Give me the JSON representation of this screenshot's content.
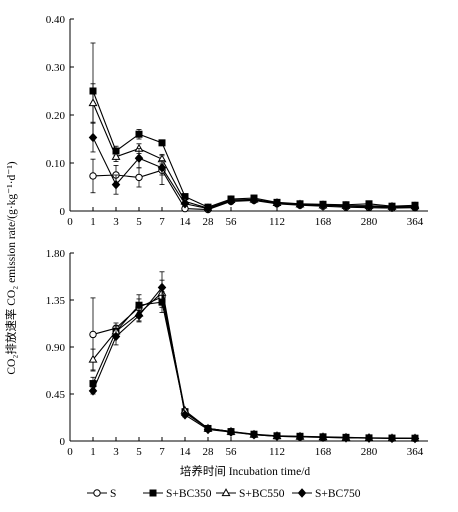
{
  "figure": {
    "ylabel": "CO₂排放速率 CO₂ emission rate/(g·kg⁻¹·d⁻¹)",
    "xlabel": "培养时间 Incubation time/d",
    "legend": [
      {
        "label": "S",
        "marker": "circle",
        "filled": false
      },
      {
        "label": "S+BC350",
        "marker": "square",
        "filled": true
      },
      {
        "label": "S+BC550",
        "marker": "triangle",
        "filled": false
      },
      {
        "label": "S+BC750",
        "marker": "diamond",
        "filled": true
      }
    ],
    "colors": {
      "line": "#000000",
      "background": "#ffffff"
    }
  },
  "chart_data": [
    {
      "type": "line",
      "panel": "top",
      "x_scale": "categorical-like (ticks not evenly spaced in value)",
      "x_tick_labels": [
        "0",
        "1",
        "3",
        "5",
        "7",
        "14",
        "28",
        "56",
        "112",
        "168",
        "280",
        "364"
      ],
      "x_positions": [
        0,
        1,
        3,
        5,
        7,
        14,
        28,
        56,
        112,
        168,
        280,
        364
      ],
      "x": [
        1,
        3,
        5,
        7,
        14,
        28,
        56,
        84,
        112,
        140,
        168,
        224,
        280,
        322,
        364
      ],
      "ylim": [
        0,
        0.4
      ],
      "y_tick_labels": [
        "0",
        "0.10",
        "0.20",
        "0.30",
        "0.40"
      ],
      "y_ticks": [
        0,
        0.1,
        0.2,
        0.3,
        0.4
      ],
      "series": [
        {
          "name": "S",
          "values": [
            0.073,
            0.075,
            0.07,
            0.085,
            0.005,
            0.003,
            0.02,
            0.022,
            0.015,
            0.012,
            0.01,
            0.008,
            0.007,
            0.006,
            0.007
          ],
          "errors": [
            0.035,
            0.02,
            0.02,
            0.03,
            0.003,
            0.002,
            0.004,
            0.004,
            0.003,
            0.003,
            0.003,
            0.003,
            0.002,
            0.002,
            0.002
          ]
        },
        {
          "name": "S+BC350",
          "values": [
            0.25,
            0.125,
            0.16,
            0.142,
            0.03,
            0.008,
            0.025,
            0.027,
            0.018,
            0.015,
            0.014,
            0.013,
            0.015,
            0.01,
            0.012
          ],
          "errors": [
            0.1,
            0.01,
            0.01,
            0.005,
            0.005,
            0.002,
            0.004,
            0.004,
            0.004,
            0.003,
            0.003,
            0.003,
            0.003,
            0.003,
            0.003
          ]
        },
        {
          "name": "S+BC550",
          "values": [
            0.225,
            0.113,
            0.13,
            0.108,
            0.02,
            0.006,
            0.023,
            0.024,
            0.017,
            0.014,
            0.012,
            0.011,
            0.011,
            0.009,
            0.01
          ],
          "errors": [
            0.04,
            0.01,
            0.01,
            0.01,
            0.004,
            0.002,
            0.004,
            0.004,
            0.003,
            0.003,
            0.003,
            0.003,
            0.003,
            0.002,
            0.003
          ]
        },
        {
          "name": "S+BC750",
          "values": [
            0.153,
            0.055,
            0.11,
            0.09,
            0.015,
            0.005,
            0.021,
            0.023,
            0.016,
            0.013,
            0.012,
            0.01,
            0.009,
            0.008,
            0.008
          ],
          "errors": [
            0.03,
            0.02,
            0.02,
            0.015,
            0.003,
            0.002,
            0.004,
            0.004,
            0.003,
            0.003,
            0.003,
            0.003,
            0.002,
            0.002,
            0.002
          ]
        }
      ]
    },
    {
      "type": "line",
      "panel": "bottom",
      "x_tick_labels": [
        "0",
        "1",
        "3",
        "5",
        "7",
        "14",
        "28",
        "56",
        "112",
        "168",
        "280",
        "364"
      ],
      "x_positions": [
        0,
        1,
        3,
        5,
        7,
        14,
        28,
        56,
        112,
        168,
        280,
        364
      ],
      "x": [
        1,
        3,
        5,
        7,
        14,
        28,
        56,
        84,
        112,
        140,
        168,
        224,
        280,
        322,
        364
      ],
      "ylim": [
        0,
        1.8
      ],
      "y_tick_labels": [
        "0",
        "0.45",
        "0.90",
        "1.35",
        "1.80"
      ],
      "y_ticks": [
        0,
        0.45,
        0.9,
        1.35,
        1.8
      ],
      "series": [
        {
          "name": "S",
          "values": [
            1.02,
            1.08,
            1.28,
            1.38,
            0.27,
            0.12,
            0.09,
            0.06,
            0.045,
            0.04,
            0.035,
            0.03,
            0.028,
            0.025,
            0.025
          ],
          "errors": [
            0.35,
            0.05,
            0.08,
            0.1,
            0.02,
            0.01,
            0.01,
            0.01,
            0.005,
            0.005,
            0.005,
            0.005,
            0.004,
            0.004,
            0.004
          ]
        },
        {
          "name": "S+BC350",
          "values": [
            0.55,
            1.05,
            1.3,
            1.33,
            0.28,
            0.12,
            0.09,
            0.065,
            0.05,
            0.045,
            0.04,
            0.035,
            0.03,
            0.028,
            0.027
          ],
          "errors": [
            0.06,
            0.05,
            0.1,
            0.1,
            0.02,
            0.01,
            0.01,
            0.01,
            0.005,
            0.005,
            0.005,
            0.005,
            0.004,
            0.004,
            0.004
          ]
        },
        {
          "name": "S+BC550",
          "values": [
            0.78,
            1.05,
            1.22,
            1.42,
            0.29,
            0.12,
            0.09,
            0.062,
            0.048,
            0.043,
            0.038,
            0.033,
            0.03,
            0.027,
            0.026
          ],
          "errors": [
            0.1,
            0.05,
            0.08,
            0.12,
            0.02,
            0.01,
            0.01,
            0.01,
            0.005,
            0.005,
            0.005,
            0.005,
            0.004,
            0.004,
            0.004
          ]
        },
        {
          "name": "S+BC750",
          "values": [
            0.48,
            1.0,
            1.2,
            1.47,
            0.25,
            0.11,
            0.085,
            0.06,
            0.045,
            0.04,
            0.035,
            0.03,
            0.028,
            0.025,
            0.024
          ],
          "errors": [
            0.03,
            0.08,
            0.05,
            0.15,
            0.02,
            0.01,
            0.01,
            0.01,
            0.005,
            0.005,
            0.005,
            0.005,
            0.004,
            0.004,
            0.004
          ]
        }
      ]
    }
  ]
}
